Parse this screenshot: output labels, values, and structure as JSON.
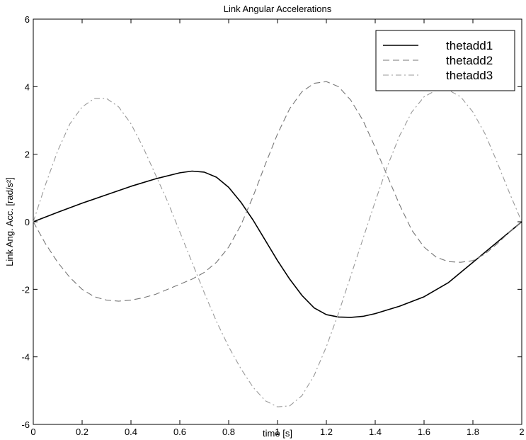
{
  "chart_data": {
    "type": "line",
    "title": "Link Angular Accelerations",
    "xlabel": "time [s]",
    "ylabel": "Link Ang. Acc.  [rad/s²]",
    "xlim": [
      0,
      2
    ],
    "ylim": [
      -6,
      6
    ],
    "xticks": [
      0,
      0.2,
      0.4,
      0.6,
      0.8,
      1,
      1.2,
      1.4,
      1.6,
      1.8,
      2
    ],
    "xtick_labels": [
      "0",
      "0.2",
      "0.4",
      "0.6",
      "0.8",
      "1",
      "1.2",
      "1.4",
      "1.6",
      "1.8",
      "2"
    ],
    "yticks": [
      -6,
      -4,
      -2,
      0,
      2,
      4,
      6
    ],
    "ytick_labels": [
      "-6",
      "-4",
      "-2",
      "0",
      "2",
      "4",
      "6"
    ],
    "grid": false,
    "legend_position": "top-right",
    "series": [
      {
        "name": "thetadd1",
        "style": "solid",
        "color": "#000000",
        "x": [
          0,
          0.1,
          0.2,
          0.3,
          0.4,
          0.5,
          0.6,
          0.65,
          0.7,
          0.75,
          0.8,
          0.85,
          0.9,
          0.95,
          1.0,
          1.05,
          1.1,
          1.15,
          1.2,
          1.25,
          1.3,
          1.35,
          1.4,
          1.5,
          1.6,
          1.7,
          1.8,
          1.9,
          2.0
        ],
        "y": [
          0,
          0.28,
          0.55,
          0.8,
          1.05,
          1.27,
          1.45,
          1.5,
          1.47,
          1.32,
          1.02,
          0.58,
          0.05,
          -0.55,
          -1.15,
          -1.7,
          -2.18,
          -2.55,
          -2.75,
          -2.82,
          -2.83,
          -2.8,
          -2.72,
          -2.5,
          -2.22,
          -1.8,
          -1.2,
          -0.6,
          0
        ]
      },
      {
        "name": "thetadd2",
        "style": "dashed",
        "color": "#777777",
        "x": [
          0,
          0.05,
          0.1,
          0.15,
          0.2,
          0.25,
          0.3,
          0.35,
          0.4,
          0.45,
          0.5,
          0.55,
          0.6,
          0.65,
          0.7,
          0.75,
          0.8,
          0.85,
          0.9,
          0.95,
          1.0,
          1.05,
          1.1,
          1.15,
          1.2,
          1.25,
          1.3,
          1.35,
          1.4,
          1.45,
          1.5,
          1.55,
          1.6,
          1.65,
          1.7,
          1.75,
          1.8,
          1.85,
          1.9,
          1.95,
          2.0
        ],
        "y": [
          0,
          -0.65,
          -1.2,
          -1.65,
          -2.0,
          -2.22,
          -2.32,
          -2.35,
          -2.32,
          -2.25,
          -2.15,
          -2.0,
          -1.85,
          -1.7,
          -1.5,
          -1.2,
          -0.75,
          -0.1,
          0.75,
          1.7,
          2.6,
          3.35,
          3.85,
          4.1,
          4.15,
          4.0,
          3.6,
          3.0,
          2.2,
          1.35,
          0.5,
          -0.25,
          -0.75,
          -1.05,
          -1.18,
          -1.2,
          -1.15,
          -0.95,
          -0.65,
          -0.3,
          0
        ]
      },
      {
        "name": "thetadd3",
        "style": "dashdot",
        "color": "#999999",
        "x": [
          0,
          0.05,
          0.1,
          0.15,
          0.2,
          0.25,
          0.3,
          0.35,
          0.4,
          0.45,
          0.5,
          0.55,
          0.6,
          0.65,
          0.7,
          0.75,
          0.8,
          0.85,
          0.9,
          0.95,
          1.0,
          1.05,
          1.1,
          1.15,
          1.2,
          1.25,
          1.3,
          1.35,
          1.4,
          1.45,
          1.5,
          1.55,
          1.6,
          1.65,
          1.7,
          1.75,
          1.8,
          1.85,
          1.9,
          1.95,
          2.0
        ],
        "y": [
          0,
          1.1,
          2.1,
          2.9,
          3.4,
          3.65,
          3.65,
          3.4,
          2.9,
          2.2,
          1.4,
          0.6,
          -0.3,
          -1.2,
          -2.1,
          -2.95,
          -3.7,
          -4.35,
          -4.9,
          -5.3,
          -5.48,
          -5.45,
          -5.15,
          -4.55,
          -3.7,
          -2.7,
          -1.6,
          -0.5,
          0.6,
          1.65,
          2.55,
          3.25,
          3.7,
          3.9,
          3.9,
          3.7,
          3.25,
          2.6,
          1.75,
          0.85,
          0
        ]
      }
    ]
  }
}
